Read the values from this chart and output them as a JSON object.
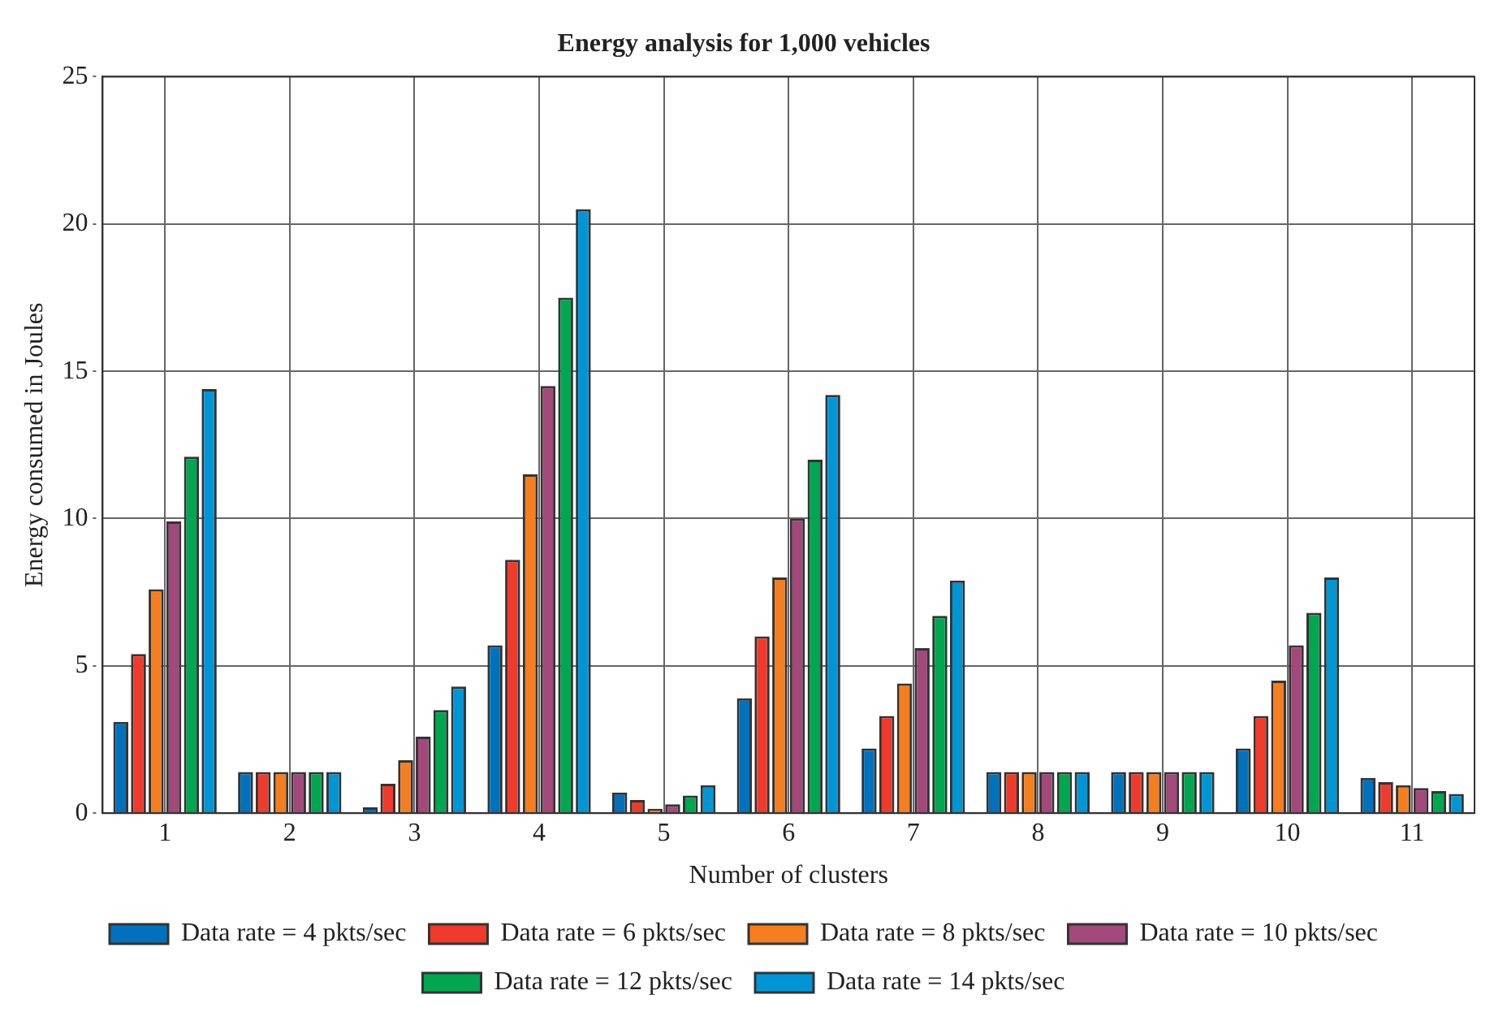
{
  "chart_data": {
    "type": "bar",
    "title": "Energy analysis for 1,000 vehicles",
    "xlabel": "Number of clusters",
    "ylabel": "Energy consumed in Joules",
    "categories": [
      "1",
      "2",
      "3",
      "4",
      "5",
      "6",
      "7",
      "8",
      "9",
      "10",
      "11"
    ],
    "series": [
      {
        "name": "Data rate = 4 pkts/sec",
        "color": "#0072bd",
        "values": [
          3.1,
          1.4,
          0.2,
          5.7,
          0.7,
          3.9,
          2.2,
          1.4,
          1.4,
          2.2,
          1.2
        ]
      },
      {
        "name": "Data rate = 6 pkts/sec",
        "color": "#ef3b2c",
        "values": [
          5.4,
          1.4,
          1.0,
          8.6,
          0.45,
          6.0,
          3.3,
          1.4,
          1.4,
          3.3,
          1.05
        ]
      },
      {
        "name": "Data rate = 8 pkts/sec",
        "color": "#f47e20",
        "values": [
          7.6,
          1.4,
          1.8,
          11.5,
          0.15,
          8.0,
          4.4,
          1.4,
          1.4,
          4.5,
          0.95
        ]
      },
      {
        "name": "Data rate = 10 pkts/sec",
        "color": "#a2487a",
        "values": [
          9.9,
          1.4,
          2.6,
          14.5,
          0.3,
          10.0,
          5.6,
          1.4,
          1.4,
          5.7,
          0.85
        ]
      },
      {
        "name": "Data rate = 12 pkts/sec",
        "color": "#00a650",
        "values": [
          12.1,
          1.4,
          3.5,
          17.5,
          0.6,
          12.0,
          6.7,
          1.4,
          1.4,
          6.8,
          0.75
        ]
      },
      {
        "name": "Data rate = 14 pkts/sec",
        "color": "#0096d6",
        "values": [
          14.4,
          1.4,
          4.3,
          20.5,
          0.95,
          14.2,
          7.9,
          1.4,
          1.4,
          8.0,
          0.65
        ]
      }
    ],
    "ylim": [
      0,
      25
    ],
    "yticks": [
      0,
      5,
      10,
      15,
      20,
      25
    ],
    "grid": true,
    "legend": "bottom"
  }
}
